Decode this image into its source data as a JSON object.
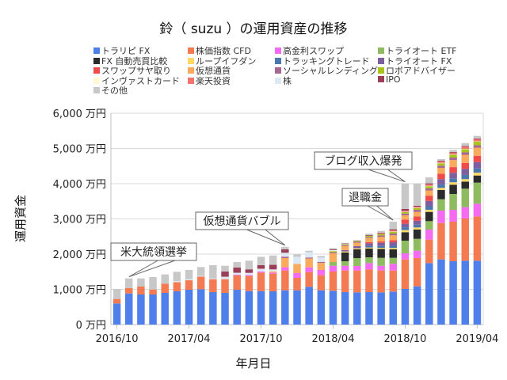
{
  "chart_data": {
    "type": "bar",
    "stacked": true,
    "title": "鈴（ suzu ）の運用資産の推移",
    "xlabel": "年月日",
    "ylabel": "運用資金",
    "ylim": [
      0,
      6000
    ],
    "yticks": [
      0,
      1000,
      2000,
      3000,
      4000,
      5000,
      6000
    ],
    "ytick_labels": [
      "0 万円",
      "1,000 万円",
      "2,000 万円",
      "3,000 万円",
      "4,000 万円",
      "5,000 万円",
      "6,000 万円"
    ],
    "xtick_labels": [
      "2016/10",
      "2017/04",
      "2017/10",
      "2018/04",
      "2018/10",
      "2019/04"
    ],
    "grid": true,
    "legend": "top",
    "categories": [
      "2016/10",
      "2016/11",
      "2016/12",
      "2017/01",
      "2017/02",
      "2017/03",
      "2017/04",
      "2017/05",
      "2017/06",
      "2017/07",
      "2017/08",
      "2017/09",
      "2017/10",
      "2017/11",
      "2017/12",
      "2018/01",
      "2018/02",
      "2018/03",
      "2018/04",
      "2018/05",
      "2018/06",
      "2018/07",
      "2018/08",
      "2018/09",
      "2018/10",
      "2018/11",
      "2018/12",
      "2019/01",
      "2019/02",
      "2019/03",
      "2019/04"
    ],
    "series": [
      {
        "name": "トラリピ FX",
        "color": "#4f7fea",
        "values": [
          600,
          883,
          854,
          854,
          899,
          944,
          989,
          1004,
          921,
          899,
          989,
          951,
          951,
          944,
          974,
          974,
          1071,
          974,
          959,
          921,
          914,
          921,
          914,
          936,
          1011,
          1086,
          1745,
          1850,
          1798,
          1813,
          1813
        ]
      },
      {
        "name": "株価指数 CFD",
        "color": "#f47a52",
        "values": [
          127,
          151,
          225,
          142,
          262,
          262,
          269,
          359,
          368,
          390,
          412,
          427,
          524,
          502,
          562,
          352,
          419,
          426,
          547,
          614,
          621,
          644,
          621,
          599,
          839,
          802,
          667,
          1033,
          1123,
          1198,
          1258
        ]
      },
      {
        "name": "高金利スワップ",
        "color": "#f46af0",
        "values": [
          0,
          0,
          0,
          0,
          0,
          0,
          0,
          0,
          0,
          0,
          20,
          30,
          30,
          30,
          90,
          135,
          135,
          151,
          164,
          135,
          128,
          180,
          135,
          188,
          172,
          209,
          285,
          353,
          337,
          322,
          360
        ]
      },
      {
        "name": "トライオート ETF",
        "color": "#8fbb60",
        "values": [
          0,
          0,
          0,
          0,
          0,
          0,
          0,
          0,
          0,
          0,
          0,
          0,
          0,
          0,
          0,
          0,
          0,
          0,
          105,
          128,
          225,
          165,
          225,
          172,
          360,
          337,
          239,
          322,
          450,
          525,
          598
        ]
      },
      {
        "name": "FX 自動売買比較",
        "color": "#2b2b2b",
        "values": [
          0,
          0,
          0,
          0,
          0,
          0,
          0,
          0,
          0,
          0,
          0,
          0,
          0,
          0,
          0,
          0,
          0,
          0,
          0,
          247,
          247,
          247,
          255,
          240,
          240,
          263,
          263,
          262,
          262,
          201,
          203
        ]
      },
      {
        "name": "ループイフダン",
        "color": "#ffd966",
        "values": [
          0,
          0,
          0,
          0,
          0,
          0,
          0,
          0,
          0,
          0,
          0,
          0,
          0,
          0,
          0,
          0,
          0,
          0,
          0,
          30,
          30,
          30,
          30,
          40,
          60,
          60,
          60,
          60,
          70,
          70,
          80
        ]
      },
      {
        "name": "トラッキングトレード",
        "color": "#4a78ae",
        "values": [
          0,
          0,
          0,
          0,
          0,
          0,
          0,
          0,
          0,
          0,
          0,
          0,
          0,
          0,
          0,
          0,
          0,
          0,
          0,
          0,
          0,
          40,
          50,
          60,
          80,
          80,
          100,
          100,
          110,
          120,
          120
        ]
      },
      {
        "name": "トライオート FX",
        "color": "#7d5e9f",
        "values": [
          0,
          0,
          0,
          0,
          0,
          0,
          0,
          0,
          0,
          0,
          0,
          0,
          0,
          0,
          0,
          0,
          0,
          0,
          0,
          40,
          60,
          80,
          90,
          100,
          100,
          110,
          150,
          150,
          160,
          170,
          180
        ]
      },
      {
        "name": "スワップサヤ取り",
        "color": "#f04a4a",
        "values": [
          0,
          0,
          0,
          0,
          0,
          0,
          0,
          0,
          0,
          0,
          0,
          0,
          0,
          0,
          0,
          0,
          0,
          0,
          0,
          0,
          0,
          30,
          40,
          60,
          120,
          120,
          150,
          150,
          160,
          170,
          180
        ]
      },
      {
        "name": "仮想通貨",
        "color": "#f9aa5c",
        "values": [
          0,
          0,
          0,
          0,
          0,
          0,
          0,
          0,
          0,
          0,
          0,
          0,
          0,
          30,
          262,
          262,
          250,
          200,
          250,
          120,
          100,
          120,
          130,
          140,
          120,
          130,
          150,
          170,
          200,
          230,
          230
        ]
      },
      {
        "name": "ソーシャルレンディング",
        "color": "#a66890",
        "values": [
          0,
          0,
          0,
          0,
          0,
          0,
          0,
          0,
          0,
          0,
          0,
          0,
          0,
          0,
          40,
          0,
          30,
          30,
          30,
          30,
          30,
          30,
          40,
          50,
          50,
          60,
          60,
          60,
          70,
          70,
          70
        ]
      },
      {
        "name": "ロボアドバイザー",
        "color": "#a8c41c",
        "values": [
          0,
          0,
          0,
          0,
          0,
          0,
          0,
          0,
          0,
          0,
          0,
          0,
          0,
          0,
          0,
          0,
          0,
          0,
          30,
          20,
          20,
          30,
          40,
          50,
          40,
          50,
          60,
          70,
          80,
          90,
          100
        ]
      },
      {
        "name": "インヴァストカード",
        "color": "#fff8d2",
        "values": [
          0,
          0,
          0,
          0,
          0,
          0,
          0,
          0,
          0,
          0,
          0,
          0,
          0,
          0,
          0,
          0,
          0,
          0,
          10,
          0,
          0,
          0,
          0,
          10,
          10,
          10,
          10,
          10,
          10,
          10,
          10
        ]
      },
      {
        "name": "楽天投資",
        "color": "#f2736d",
        "values": [
          0,
          0,
          0,
          0,
          0,
          0,
          0,
          0,
          0,
          0,
          0,
          0,
          0,
          0,
          0,
          0,
          0,
          0,
          0,
          0,
          0,
          0,
          20,
          30,
          30,
          30,
          40,
          40,
          50,
          60,
          60
        ]
      },
      {
        "name": "株",
        "color": "#dce9f4",
        "values": [
          0,
          0,
          0,
          0,
          0,
          30,
          30,
          20,
          20,
          70,
          50,
          60,
          80,
          60,
          110,
          200,
          150,
          120,
          20,
          10,
          0,
          0,
          0,
          0,
          0,
          0,
          0,
          0,
          0,
          0,
          0
        ]
      },
      {
        "name": "IPO",
        "color": "#9a3f57",
        "values": [
          0,
          0,
          0,
          0,
          0,
          0,
          0,
          0,
          0,
          150,
          150,
          100,
          100,
          130,
          100,
          0,
          0,
          0,
          20,
          10,
          10,
          20,
          20,
          30,
          49,
          24,
          30,
          20,
          20,
          20,
          20
        ]
      },
      {
        "name": "その他",
        "color": "#c8c8c8",
        "values": [
          283,
          277,
          232,
          352,
          262,
          262,
          263,
          250,
          376,
          161,
          154,
          245,
          240,
          266,
          70,
          70,
          40,
          47,
          37,
          17,
          12,
          47,
          49,
          216,
          726,
          636,
          171,
          47,
          59,
          84,
          74
        ]
      }
    ],
    "annotations": [
      {
        "text": "米大統領選挙",
        "category": "2016/11"
      },
      {
        "text": "仮想通貨バブル",
        "category": "2017/12"
      },
      {
        "text": "退職金",
        "category": "2018/09"
      },
      {
        "text": "ブログ収入爆発",
        "category": "2018/10"
      }
    ]
  }
}
